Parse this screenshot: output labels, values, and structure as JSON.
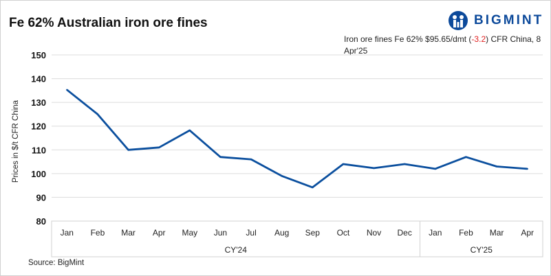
{
  "title": "Fe 62% Australian iron ore fines",
  "logo": {
    "text": "BIGMINT",
    "color": "#0d4a9b"
  },
  "note": {
    "prefix": "Iron ore fines Fe 62% $95.65/dmt (",
    "change": "-3.2",
    "suffix": ") CFR China, 8 Apr'25",
    "change_color": "#e02020"
  },
  "source": "Source: BigMint",
  "chart_data": {
    "type": "line",
    "title": "Fe 62% Australian iron ore fines",
    "ylabel": "Prices in $/t CFR China",
    "ylim": [
      80,
      150
    ],
    "yticks": [
      80,
      90,
      100,
      110,
      120,
      130,
      140,
      150
    ],
    "grid": true,
    "categories": [
      "Jan",
      "Feb",
      "Mar",
      "Apr",
      "May",
      "Jun",
      "Jul",
      "Aug",
      "Sep",
      "Oct",
      "Nov",
      "Dec",
      "Jan",
      "Feb",
      "Mar",
      "Apr"
    ],
    "groups": [
      {
        "label": "CY'24",
        "count": 12
      },
      {
        "label": "CY'25",
        "count": 4
      }
    ],
    "series": [
      {
        "color": "#0b4f9e",
        "values": [
          135.3,
          125,
          110,
          111,
          118.2,
          107,
          106,
          99,
          94.2,
          104,
          102.3,
          104,
          102,
          107,
          103,
          102
        ]
      }
    ]
  }
}
